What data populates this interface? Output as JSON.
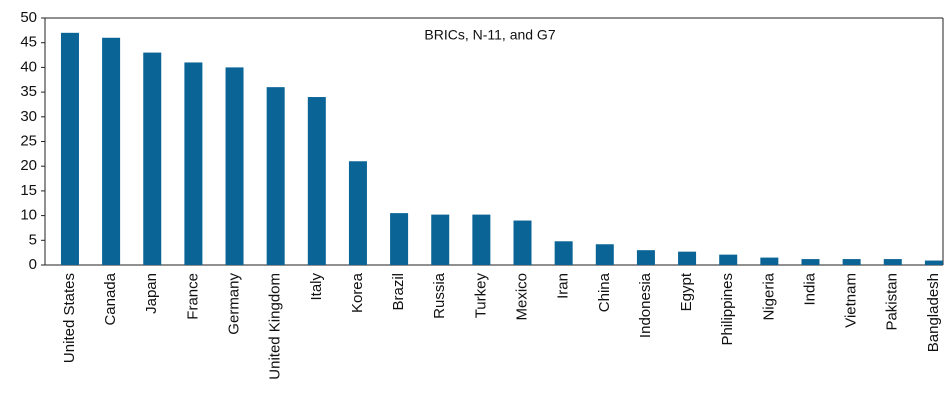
{
  "chart_data": {
    "type": "bar",
    "title": "BRICs, N-11, and G7",
    "categories": [
      "United States",
      "Canada",
      "Japan",
      "France",
      "Germany",
      "United Kingdom",
      "Italy",
      "Korea",
      "Brazil",
      "Russia",
      "Turkey",
      "Mexico",
      "Iran",
      "China",
      "Indonesia",
      "Egypt",
      "Philippines",
      "Nigeria",
      "India",
      "Vietnam",
      "Pakistan",
      "Bangladesh"
    ],
    "values": [
      47,
      46,
      43,
      41,
      40,
      36,
      34,
      21,
      10.5,
      10.2,
      10.2,
      9,
      4.8,
      4.2,
      3,
      2.7,
      2.1,
      1.5,
      1.2,
      1.2,
      1.2,
      0.9
    ],
    "color": "#0a6496",
    "ylim": [
      0,
      50
    ],
    "yticks": [
      0,
      5,
      10,
      15,
      20,
      25,
      30,
      35,
      40,
      45,
      50
    ],
    "grid": false
  }
}
